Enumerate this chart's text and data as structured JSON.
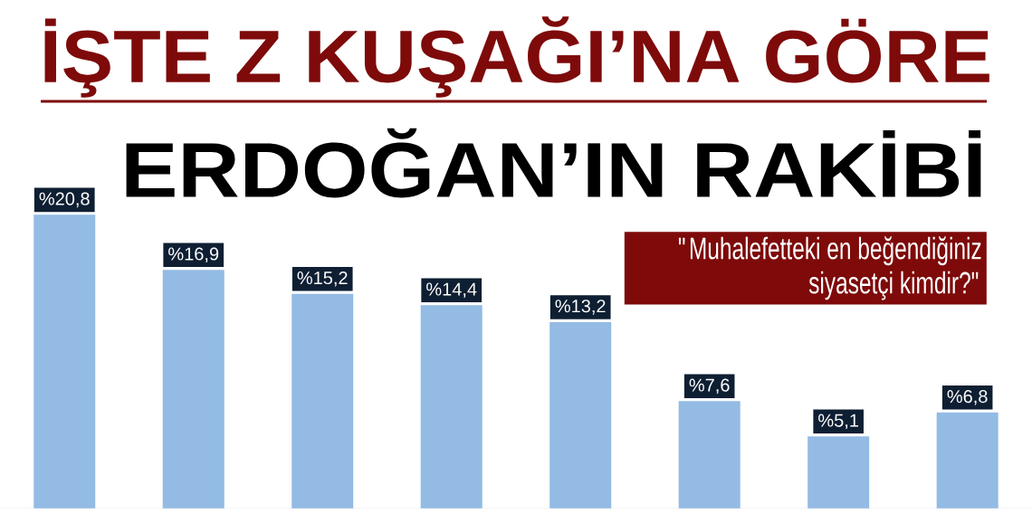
{
  "chart_data": {
    "type": "bar",
    "title": "İŞTE Z KUŞAĞI’NA GÖRE",
    "subtitle": "ERDOĞAN’IN RAKİBİ",
    "annotations": [
      "\"Muhalefetteki en beğendiğiniz siyasetçi kimdir?\""
    ],
    "categories": [
      null,
      null,
      null,
      null,
      null,
      null,
      null,
      null
    ],
    "values": [
      20.8,
      16.9,
      15.2,
      14.4,
      13.2,
      7.6,
      5.1,
      6.8
    ],
    "value_labels": [
      "%20,8",
      "%16,9",
      "%15,2",
      "%14,4",
      "%13,2",
      "%7,6",
      "%5,1",
      "%6,8"
    ],
    "color": "#93bbe3"
  }
}
